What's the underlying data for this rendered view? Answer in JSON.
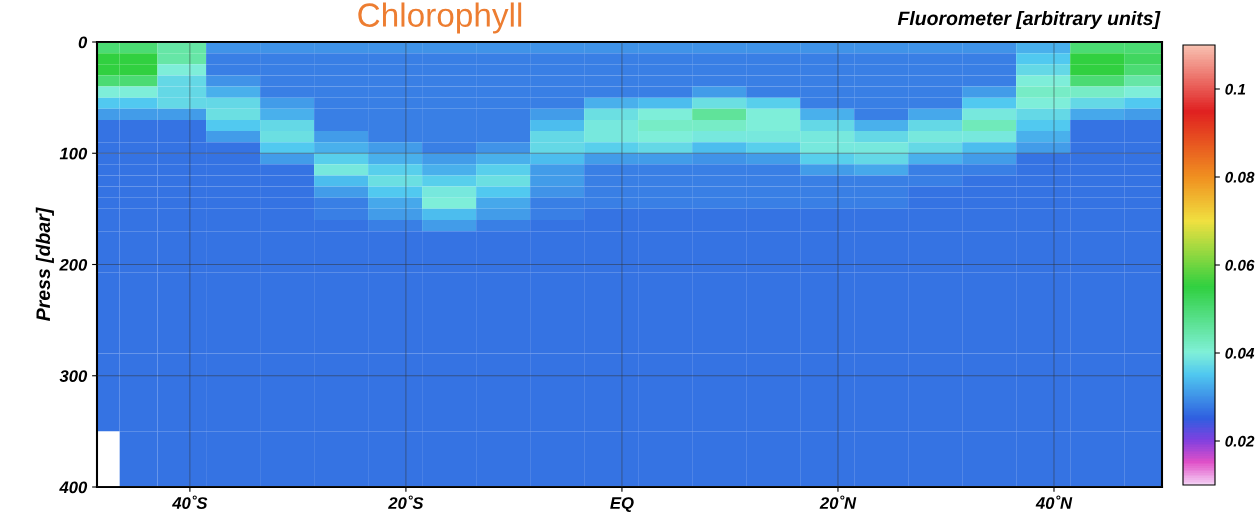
{
  "chart_data": {
    "type": "heatmap",
    "title": "Chlorophyll",
    "clabel": "Fluorometer [arbitrary units]",
    "ylabel": "Press [dbar]",
    "x": [
      -48,
      -45,
      -41,
      -36,
      -31,
      -26,
      -21,
      -16,
      -11,
      -6,
      -1,
      4,
      9,
      14,
      19,
      24,
      29,
      34,
      39,
      44,
      49
    ],
    "y": [
      5,
      15,
      25,
      35,
      45,
      55,
      65,
      75,
      85,
      95,
      105,
      115,
      125,
      135,
      145,
      155,
      165,
      175,
      240,
      320,
      380
    ],
    "cells": [
      [
        0.05,
        0.05,
        0.045,
        0.03,
        0.03,
        0.03,
        0.03,
        0.03,
        0.03,
        0.03,
        0.03,
        0.03,
        0.03,
        0.03,
        0.03,
        0.03,
        0.03,
        0.03,
        0.033,
        0.05,
        0.05
      ],
      [
        0.055,
        0.055,
        0.045,
        0.028,
        0.028,
        0.028,
        0.028,
        0.028,
        0.028,
        0.028,
        0.028,
        0.028,
        0.028,
        0.028,
        0.028,
        0.028,
        0.028,
        0.028,
        0.035,
        0.055,
        0.052
      ],
      [
        0.055,
        0.055,
        0.04,
        0.028,
        0.028,
        0.028,
        0.028,
        0.028,
        0.028,
        0.028,
        0.028,
        0.028,
        0.028,
        0.028,
        0.028,
        0.028,
        0.028,
        0.028,
        0.037,
        0.055,
        0.05
      ],
      [
        0.05,
        0.05,
        0.037,
        0.03,
        0.028,
        0.028,
        0.028,
        0.028,
        0.028,
        0.028,
        0.028,
        0.028,
        0.028,
        0.028,
        0.028,
        0.028,
        0.028,
        0.028,
        0.04,
        0.05,
        0.045
      ],
      [
        0.04,
        0.04,
        0.037,
        0.033,
        0.028,
        0.028,
        0.028,
        0.028,
        0.028,
        0.028,
        0.028,
        0.028,
        0.031,
        0.028,
        0.028,
        0.028,
        0.028,
        0.031,
        0.042,
        0.042,
        0.04
      ],
      [
        0.035,
        0.035,
        0.037,
        0.037,
        0.031,
        0.028,
        0.028,
        0.028,
        0.028,
        0.028,
        0.033,
        0.034,
        0.038,
        0.036,
        0.028,
        0.028,
        0.028,
        0.035,
        0.04,
        0.037,
        0.035
      ],
      [
        0.031,
        0.031,
        0.031,
        0.038,
        0.033,
        0.028,
        0.028,
        0.028,
        0.028,
        0.031,
        0.038,
        0.04,
        0.046,
        0.04,
        0.033,
        0.028,
        0.032,
        0.039,
        0.037,
        0.032,
        0.031
      ],
      [
        0.027,
        0.027,
        0.027,
        0.035,
        0.037,
        0.028,
        0.028,
        0.028,
        0.028,
        0.034,
        0.039,
        0.042,
        0.042,
        0.04,
        0.037,
        0.033,
        0.037,
        0.043,
        0.035,
        0.027,
        0.027
      ],
      [
        0.027,
        0.027,
        0.027,
        0.031,
        0.038,
        0.031,
        0.028,
        0.028,
        0.028,
        0.037,
        0.039,
        0.04,
        0.039,
        0.039,
        0.039,
        0.037,
        0.039,
        0.039,
        0.033,
        0.027,
        0.027
      ],
      [
        0.027,
        0.027,
        0.027,
        0.027,
        0.035,
        0.033,
        0.031,
        0.028,
        0.03,
        0.037,
        0.036,
        0.037,
        0.034,
        0.036,
        0.039,
        0.039,
        0.037,
        0.034,
        0.031,
        0.027,
        0.027
      ],
      [
        0.027,
        0.027,
        0.027,
        0.027,
        0.031,
        0.036,
        0.033,
        0.031,
        0.033,
        0.034,
        0.031,
        0.031,
        0.03,
        0.031,
        0.036,
        0.037,
        0.033,
        0.031,
        0.027,
        0.027,
        0.027
      ],
      [
        0.027,
        0.027,
        0.027,
        0.027,
        0.027,
        0.039,
        0.036,
        0.033,
        0.036,
        0.031,
        0.028,
        0.028,
        0.028,
        0.028,
        0.031,
        0.032,
        0.028,
        0.028,
        0.027,
        0.027,
        0.027
      ],
      [
        0.027,
        0.027,
        0.027,
        0.027,
        0.027,
        0.034,
        0.038,
        0.036,
        0.038,
        0.031,
        0.028,
        0.028,
        0.028,
        0.028,
        0.028,
        0.028,
        0.028,
        0.027,
        0.027,
        0.027,
        0.027
      ],
      [
        0.027,
        0.027,
        0.027,
        0.027,
        0.027,
        0.031,
        0.035,
        0.039,
        0.035,
        0.03,
        0.028,
        0.028,
        0.028,
        0.028,
        0.028,
        0.028,
        0.027,
        0.027,
        0.027,
        0.027,
        0.027
      ],
      [
        0.027,
        0.027,
        0.027,
        0.027,
        0.027,
        0.028,
        0.032,
        0.04,
        0.032,
        0.028,
        0.028,
        0.028,
        0.028,
        0.028,
        0.028,
        0.028,
        0.027,
        0.027,
        0.027,
        0.027,
        0.027
      ],
      [
        0.027,
        0.027,
        0.027,
        0.027,
        0.027,
        0.028,
        0.031,
        0.034,
        0.031,
        0.028,
        0.027,
        0.027,
        0.027,
        0.027,
        0.027,
        0.027,
        0.027,
        0.027,
        0.027,
        0.027,
        0.027
      ],
      [
        0.027,
        0.027,
        0.027,
        0.027,
        0.027,
        0.027,
        0.028,
        0.031,
        0.028,
        0.027,
        0.027,
        0.027,
        0.027,
        0.027,
        0.027,
        0.027,
        0.027,
        0.027,
        0.027,
        0.027,
        0.027
      ],
      [
        0.027,
        0.027,
        0.027,
        0.027,
        0.027,
        0.027,
        0.027,
        0.027,
        0.027,
        0.027,
        0.027,
        0.027,
        0.027,
        0.027,
        0.027,
        0.027,
        0.027,
        0.027,
        0.027,
        0.027,
        0.027
      ],
      [
        0.027,
        0.027,
        0.027,
        0.027,
        0.027,
        0.027,
        0.027,
        0.027,
        0.027,
        0.027,
        0.027,
        0.027,
        0.027,
        0.027,
        0.027,
        0.027,
        0.027,
        0.027,
        0.027,
        0.027,
        0.027
      ],
      [
        0.027,
        0.027,
        0.027,
        0.027,
        0.027,
        0.027,
        0.027,
        0.027,
        0.027,
        0.027,
        0.027,
        0.027,
        0.027,
        0.027,
        0.027,
        0.027,
        0.027,
        0.027,
        0.027,
        0.027,
        0.027
      ],
      [
        null,
        0.027,
        0.027,
        0.027,
        0.027,
        0.027,
        0.027,
        0.027,
        0.027,
        0.027,
        0.027,
        0.027,
        0.027,
        0.027,
        0.027,
        0.027,
        0.027,
        0.027,
        0.027,
        0.027,
        0.027
      ]
    ],
    "xlim": [
      -48.6,
      50
    ],
    "ylim": [
      400,
      0
    ],
    "xticks": [
      {
        "value": -40,
        "label": "40˚S"
      },
      {
        "value": -20,
        "label": "20˚S"
      },
      {
        "value": 0,
        "label": "EQ"
      },
      {
        "value": 20,
        "label": "20˚N"
      },
      {
        "value": 40,
        "label": "40˚N"
      }
    ],
    "yticks": [
      0,
      100,
      200,
      300,
      400
    ],
    "clim": [
      0.01,
      0.11
    ],
    "cticks": [
      0.02,
      0.04,
      0.06,
      0.08,
      {
        "value": 0.1,
        "label": "0.1"
      }
    ],
    "grid": true
  }
}
